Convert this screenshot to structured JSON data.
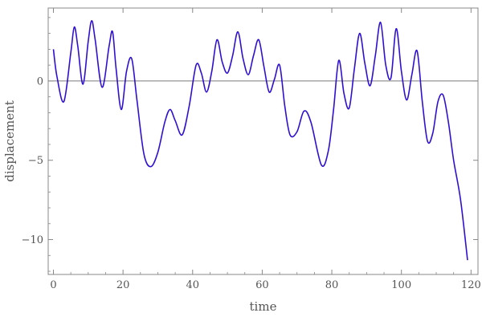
{
  "chart_data": {
    "type": "line",
    "title": "",
    "xlabel": "time",
    "ylabel": "displacement",
    "xlim": [
      -1.5,
      122
    ],
    "ylim": [
      -12.2,
      4.6
    ],
    "xticks": [
      0,
      20,
      40,
      60,
      80,
      100,
      120
    ],
    "yticks": [
      0,
      -5,
      -10
    ],
    "xtick_labels": [
      "0",
      "20",
      "40",
      "60",
      "80",
      "100",
      "120"
    ],
    "ytick_labels": [
      "0",
      "−5",
      "−10"
    ],
    "grid": false,
    "zero_line": true,
    "colors": {
      "line": "#2f10d0",
      "axis": "#888888",
      "zero_line": "#7a7a7a",
      "text": "#555555"
    },
    "series": [
      {
        "name": "",
        "x": [
          0,
          1,
          3,
          5,
          6,
          7,
          8.5,
          10,
          11,
          12,
          14,
          16,
          17,
          18,
          19.5,
          21,
          22.5,
          24,
          26,
          28,
          30,
          32,
          33.5,
          35,
          37,
          39,
          41,
          42.5,
          44,
          45.5,
          47,
          48.5,
          50,
          51.5,
          53,
          54.5,
          56,
          57.5,
          59,
          60.5,
          62,
          63.5,
          65,
          66.5,
          68,
          70,
          72,
          74,
          77,
          79,
          80.5,
          82,
          83.5,
          85,
          86.5,
          88,
          89.5,
          91,
          92.5,
          94,
          95.5,
          97,
          98.5,
          100,
          101.5,
          103,
          104.5,
          106,
          107.5,
          109,
          110.5,
          112,
          113.5,
          115,
          117,
          119
        ],
        "y": [
          2.0,
          0.3,
          -1.3,
          1.8,
          3.4,
          2.2,
          -0.2,
          2.5,
          3.8,
          2.6,
          -0.4,
          2.2,
          3.1,
          0.8,
          -1.8,
          0.6,
          1.4,
          -1.2,
          -4.6,
          -5.4,
          -4.5,
          -2.6,
          -1.8,
          -2.5,
          -3.4,
          -1.6,
          1.0,
          0.5,
          -0.7,
          0.6,
          2.6,
          1.2,
          0.5,
          1.6,
          3.1,
          1.4,
          0.4,
          1.6,
          2.6,
          0.9,
          -0.7,
          0.1,
          1.0,
          -1.6,
          -3.4,
          -3.2,
          -1.9,
          -2.6,
          -5.3,
          -4.4,
          -1.8,
          1.3,
          -0.8,
          -1.7,
          0.8,
          3.0,
          1.1,
          -0.3,
          1.6,
          3.7,
          1.0,
          0.2,
          3.3,
          0.6,
          -1.2,
          0.4,
          1.9,
          -1.3,
          -3.8,
          -3.3,
          -1.3,
          -0.9,
          -2.6,
          -5.0,
          -7.5,
          -11.3
        ]
      }
    ]
  }
}
